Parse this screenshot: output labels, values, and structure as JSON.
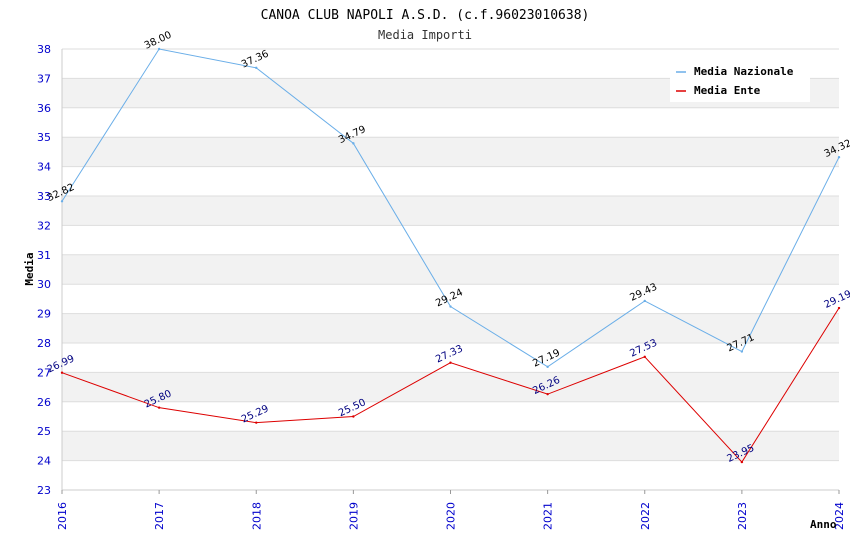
{
  "chart_data": {
    "type": "line",
    "title": "CANOA CLUB NAPOLI A.S.D. (c.f.96023010638)",
    "subtitle": "Media Importi",
    "xlabel": "Anno",
    "ylabel": "Media",
    "x": [
      "2016",
      "2017",
      "2018",
      "2019",
      "2020",
      "2021",
      "2022",
      "2023",
      "2024"
    ],
    "ylim": [
      23,
      38
    ],
    "yticks": [
      "23",
      "24",
      "25",
      "26",
      "27",
      "28",
      "29",
      "30",
      "31",
      "32",
      "33",
      "34",
      "35",
      "36",
      "37",
      "38"
    ],
    "grid": true,
    "legend_position": "top-right",
    "series": [
      {
        "name": "Media Nazionale",
        "color": "#6aaee8",
        "values": [
          32.82,
          38.0,
          37.36,
          34.79,
          29.24,
          27.19,
          29.43,
          27.71,
          34.32
        ],
        "labels": [
          "32.82",
          "38.00",
          "37.36",
          "34.79",
          "29.24",
          "27.19",
          "29.43",
          "27.71",
          "34.32"
        ]
      },
      {
        "name": "Media Ente",
        "color": "#dd0000",
        "values": [
          26.99,
          25.8,
          25.29,
          25.5,
          27.33,
          26.26,
          27.53,
          23.95,
          29.19
        ],
        "labels": [
          "26.99",
          "25.80",
          "25.29",
          "25.50",
          "27.33",
          "26.26",
          "27.53",
          "23.95",
          "29.19"
        ]
      }
    ]
  }
}
